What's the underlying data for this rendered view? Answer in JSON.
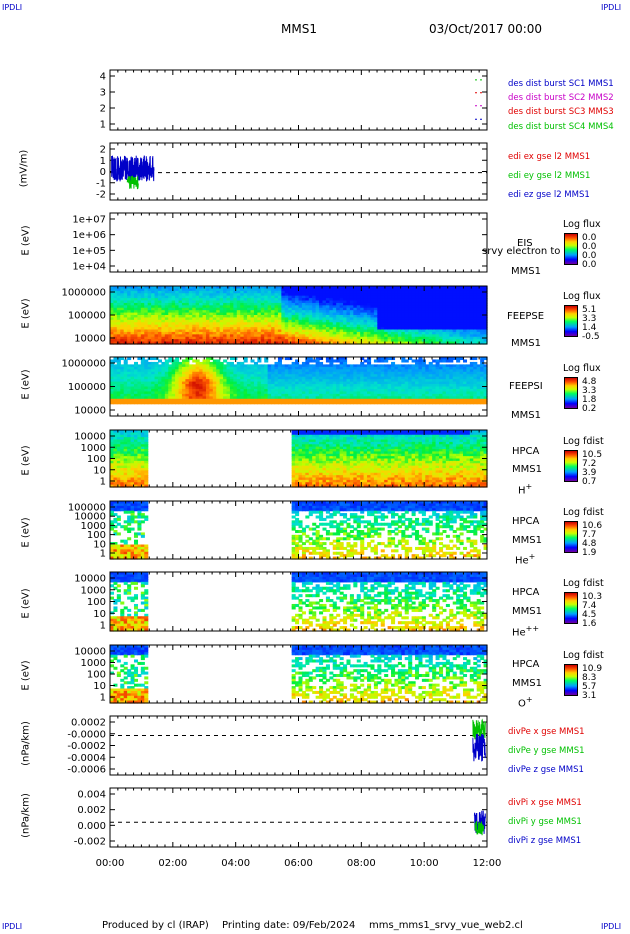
{
  "corners": {
    "tl": "IPDLI",
    "tr": "IPDLI",
    "bl": "IPDLI",
    "br": "IPDLI"
  },
  "header": {
    "title": "MMS1",
    "date": "03/Oct/2017 00:00"
  },
  "footer": {
    "produced": "Produced by cl (IRAP)",
    "printing": "Printing date: 09/Feb/2024",
    "file": "mms_mms1_srvy_vue_web2.cl"
  },
  "colors": {
    "frame": "#000000",
    "red": "#e00000",
    "green": "#00c000",
    "blue": "#0000c8",
    "magenta": "#c800c8"
  },
  "chart_data": {
    "type": "multi-panel",
    "xaxis": {
      "ticks": [
        "00:00",
        "02:00",
        "04:00",
        "06:00",
        "08:00",
        "10:00",
        "12:00"
      ],
      "range_hours": [
        0,
        12
      ]
    },
    "panels": [
      {
        "id": "burst",
        "type": "line",
        "ylabel": "",
        "yticks": [
          "4",
          "3",
          "2",
          "1"
        ],
        "ylim": [
          0.5,
          4.5
        ],
        "legend": [
          {
            "text": "des dist burst SC1 MMS1",
            "color": "#0000c8"
          },
          {
            "text": "des dist burst SC2 MMS2",
            "color": "#c800c8"
          },
          {
            "text": "des dist burst SC3 MMS3",
            "color": "#e00000"
          },
          {
            "text": "des dist burst SC4 MMS4",
            "color": "#00c000"
          }
        ]
      },
      {
        "id": "edi",
        "type": "line",
        "ylabel": "(mV/m)",
        "yticks": [
          "2",
          "1",
          "0",
          "-1",
          "-2"
        ],
        "ylim": [
          -2,
          2
        ],
        "legend": [
          {
            "text": "edi ex gse l2 MMS1",
            "color": "#e00000"
          },
          {
            "text": "edi ey gse l2 MMS1",
            "color": "#00c000"
          },
          {
            "text": "edi ez gse l2 MMS1",
            "color": "#0000c8"
          }
        ]
      },
      {
        "id": "eis",
        "type": "heatmap",
        "ylabel": "E (eV)",
        "yticks": [
          "1e+07",
          "1e+06",
          "1e+05",
          "1e+04"
        ],
        "labels": [
          "EIS",
          "MMS1"
        ],
        "overlay_text": "srvy electron to",
        "colorbar": {
          "title": "Log flux",
          "values": [
            "0.0",
            "0.0",
            "0.0",
            "0.0"
          ]
        }
      },
      {
        "id": "feepse",
        "type": "heatmap",
        "ylabel": "E (eV)",
        "yticks": [
          "1000000",
          "100000",
          "10000"
        ],
        "labels": [
          "FEEPSE",
          "MMS1"
        ],
        "colorbar": {
          "title": "Log flux",
          "values": [
            "5.1",
            "3.3",
            "1.4",
            "-0.5"
          ]
        }
      },
      {
        "id": "feepsi",
        "type": "heatmap",
        "ylabel": "E (eV)",
        "yticks": [
          "1000000",
          "100000",
          "10000"
        ],
        "labels": [
          "FEEPSI",
          "MMS1"
        ],
        "colorbar": {
          "title": "Log flux",
          "values": [
            "4.8",
            "3.3",
            "1.8",
            "0.2"
          ]
        }
      },
      {
        "id": "hpca_h",
        "type": "heatmap",
        "ylabel": "E (eV)",
        "yticks": [
          "10000",
          "1000",
          "100",
          "10",
          "1"
        ],
        "labels": [
          "HPCA",
          "MMS1"
        ],
        "species": "H",
        "charge": "+",
        "colorbar": {
          "title": "Log fdist",
          "values": [
            "10.5",
            "7.2",
            "3.9",
            "0.7"
          ]
        }
      },
      {
        "id": "hpca_he",
        "type": "heatmap",
        "ylabel": "E (eV)",
        "yticks": [
          "100000",
          "10000",
          "1000",
          "100",
          "10",
          "1"
        ],
        "labels": [
          "HPCA",
          "MMS1"
        ],
        "species": "He",
        "charge": "+",
        "colorbar": {
          "title": "Log fdist",
          "values": [
            "10.6",
            "7.7",
            "4.8",
            "1.9"
          ]
        }
      },
      {
        "id": "hpca_he2",
        "type": "heatmap",
        "ylabel": "E (eV)",
        "yticks": [
          "10000",
          "1000",
          "100",
          "10",
          "1"
        ],
        "labels": [
          "HPCA",
          "MMS1"
        ],
        "species": "He",
        "charge": "++",
        "colorbar": {
          "title": "Log fdist",
          "values": [
            "10.3",
            "7.4",
            "4.5",
            "1.6"
          ]
        }
      },
      {
        "id": "hpca_o",
        "type": "heatmap",
        "ylabel": "E (eV)",
        "yticks": [
          "10000",
          "1000",
          "100",
          "10",
          "1"
        ],
        "labels": [
          "HPCA",
          "MMS1"
        ],
        "species": "O",
        "charge": "+",
        "colorbar": {
          "title": "Log fdist",
          "values": [
            "10.9",
            "8.3",
            "5.7",
            "3.1"
          ]
        }
      },
      {
        "id": "divpe",
        "type": "line",
        "ylabel": "(nPa/km)",
        "yticks": [
          "0.0002",
          "-0.0000",
          "-0.0002",
          "-0.0004",
          "-0.0006"
        ],
        "ylim": [
          -0.0007,
          0.0003
        ],
        "legend": [
          {
            "text": "divPe x gse MMS1",
            "color": "#e00000"
          },
          {
            "text": "divPe y gse MMS1",
            "color": "#00c000"
          },
          {
            "text": "divPe z gse MMS1",
            "color": "#0000c8"
          }
        ]
      },
      {
        "id": "divpi",
        "type": "line",
        "ylabel": "(nPa/km)",
        "yticks": [
          "0.004",
          "0.002",
          "0.000",
          "-0.002"
        ],
        "ylim": [
          -0.003,
          0.0045
        ],
        "legend": [
          {
            "text": "divPi x gse MMS1",
            "color": "#e00000"
          },
          {
            "text": "divPi y gse MMS1",
            "color": "#00c000"
          },
          {
            "text": "divPi z gse MMS1",
            "color": "#0000c8"
          }
        ]
      }
    ]
  }
}
